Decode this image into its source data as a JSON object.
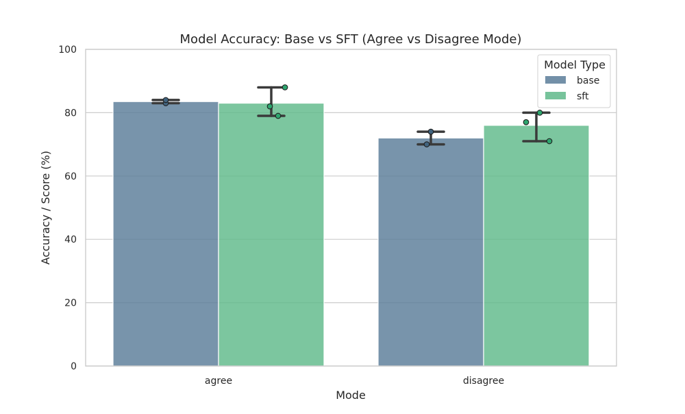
{
  "chart_data": {
    "type": "bar",
    "title": "Model Accuracy: Base vs SFT (Agree vs Disagree Mode)",
    "xlabel": "Mode",
    "ylabel": "Accuracy / Score (%)",
    "ylim": [
      0,
      100
    ],
    "yticks": [
      "0",
      "20",
      "40",
      "60",
      "80",
      "100"
    ],
    "grid": true,
    "categories": [
      "agree",
      "disagree"
    ],
    "legend": {
      "title": "Model Type",
      "placement": "top-right"
    },
    "series": [
      {
        "name": "base",
        "color": "#5a7d99",
        "values": [
          83.5,
          72
        ],
        "error_bars": [
          [
            83,
            84
          ],
          [
            70,
            74
          ]
        ],
        "points": [
          [
            83,
            84
          ],
          [
            70,
            74
          ]
        ]
      },
      {
        "name": "sft",
        "color": "#5fb98a",
        "values": [
          83,
          76
        ],
        "error_bars": [
          [
            79,
            88
          ],
          [
            71,
            80
          ]
        ],
        "points": [
          [
            88,
            82,
            79
          ],
          [
            80,
            77,
            71
          ]
        ]
      }
    ]
  }
}
